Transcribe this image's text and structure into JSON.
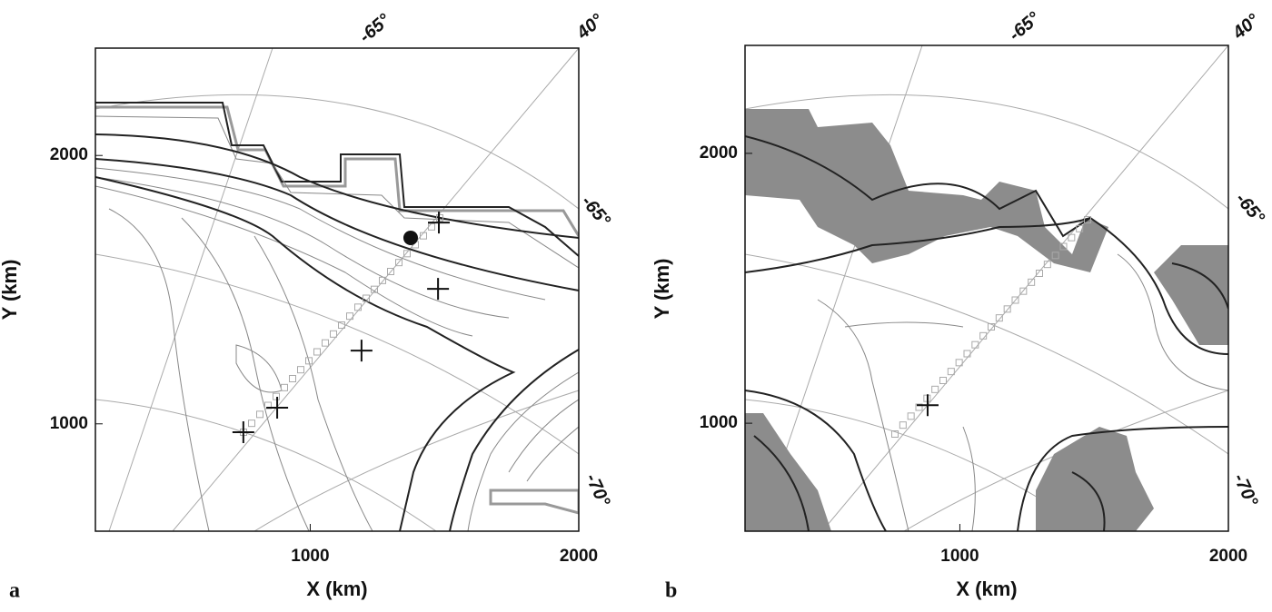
{
  "chart_data": [
    {
      "type": "scatter",
      "panel_label": "a",
      "xlabel": "X (km)",
      "ylabel": "Y (km)",
      "xlim": [
        200,
        2000
      ],
      "ylim": [
        600,
        2400
      ],
      "xticks": [
        1000,
        2000
      ],
      "yticks": [
        1000,
        2000
      ],
      "graticule_labels": [
        "-65°",
        "40°",
        "-65°",
        "-70°"
      ],
      "series": [
        {
          "marker": "cross",
          "color": "#111111",
          "x": [
            751,
            877,
            1191,
            1476,
            1479
          ],
          "y": [
            969,
            1060,
            1273,
            1503,
            1750
          ]
        },
        {
          "marker": "dot",
          "color": "#111111",
          "x": [
            1374
          ],
          "y": [
            1693
          ]
        }
      ]
    },
    {
      "type": "scatter",
      "panel_label": "b",
      "xlabel": "X (km)",
      "ylabel": "Y (km)",
      "xlim": [
        200,
        2000
      ],
      "ylim": [
        600,
        2400
      ],
      "xticks": [
        1000,
        2000
      ],
      "yticks": [
        1000,
        2000
      ],
      "graticule_labels": [
        "-65°",
        "40°",
        "-65°",
        "-70°"
      ],
      "series": [
        {
          "marker": "cross",
          "color": "#111111",
          "x": [
            880
          ],
          "y": [
            1067
          ]
        }
      ]
    }
  ]
}
